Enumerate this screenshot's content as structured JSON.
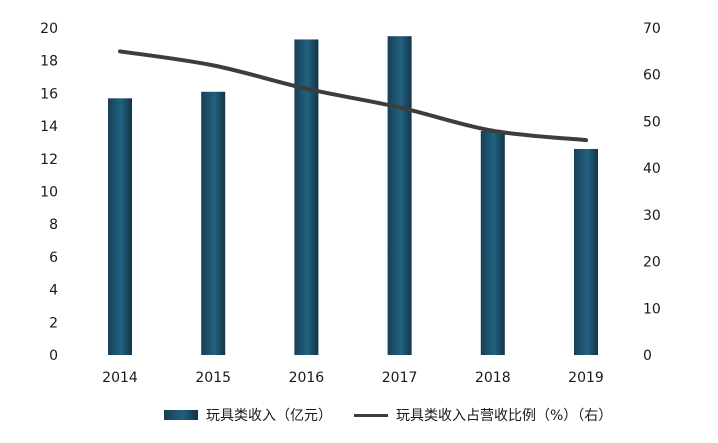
{
  "chart_data": {
    "type": "bar+line",
    "categories": [
      "2014",
      "2015",
      "2016",
      "2017",
      "2018",
      "2019"
    ],
    "series": [
      {
        "name": "玩具类收入（亿元）",
        "type": "bar",
        "axis": "left",
        "color": "#1f5a73",
        "values": [
          15.7,
          16.1,
          19.3,
          19.5,
          13.7,
          12.6
        ]
      },
      {
        "name": "玩具类收入占营收比例（%）（右）",
        "type": "line",
        "axis": "right",
        "color": "#3d3d3d",
        "values": [
          65,
          62,
          57,
          53,
          48,
          46
        ]
      }
    ],
    "y_left": {
      "min": 0,
      "max": 20,
      "ticks": [
        "0",
        "2",
        "4",
        "6",
        "8",
        "10",
        "12",
        "14",
        "16",
        "18",
        "20"
      ]
    },
    "y_right": {
      "min": 0,
      "max": 70,
      "ticks": [
        "0",
        "10",
        "20",
        "30",
        "40",
        "50",
        "60",
        "70"
      ]
    },
    "legend": {
      "placement": "bottom"
    },
    "grid": false
  }
}
